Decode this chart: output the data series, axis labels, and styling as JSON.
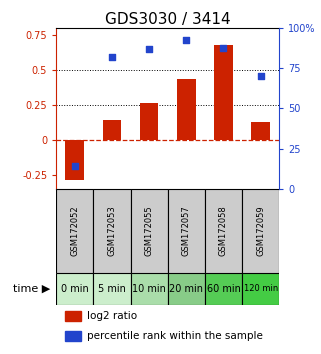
{
  "title": "GDS3030 / 3414",
  "categories": [
    "GSM172052",
    "GSM172053",
    "GSM172055",
    "GSM172057",
    "GSM172058",
    "GSM172059"
  ],
  "time_labels": [
    "0 min",
    "5 min",
    "10 min",
    "20 min",
    "60 min",
    "120 min"
  ],
  "log2_ratio": [
    -0.29,
    0.14,
    0.265,
    0.44,
    0.68,
    0.13
  ],
  "percentile_rank": [
    14,
    82,
    87,
    93,
    88,
    70
  ],
  "bar_color": "#cc2200",
  "dot_color": "#2244cc",
  "ylim_left": [
    -0.35,
    0.8
  ],
  "ylim_right": [
    0,
    100
  ],
  "yticks_left": [
    -0.25,
    0.0,
    0.25,
    0.5,
    0.75
  ],
  "yticks_right": [
    0,
    25,
    50,
    75,
    100
  ],
  "hline_dashed_red": 0.0,
  "hline_dotted_black_1": 0.25,
  "hline_dotted_black_2": 0.5,
  "cell_color_gray": "#cccccc",
  "green_colors": [
    "#cceecc",
    "#cceecc",
    "#aaddaa",
    "#88cc88",
    "#55cc55",
    "#44cc44"
  ],
  "legend_items": [
    "log2 ratio",
    "percentile rank within the sample"
  ],
  "title_fontsize": 11,
  "tick_fontsize": 7,
  "label_fontsize": 7.5
}
